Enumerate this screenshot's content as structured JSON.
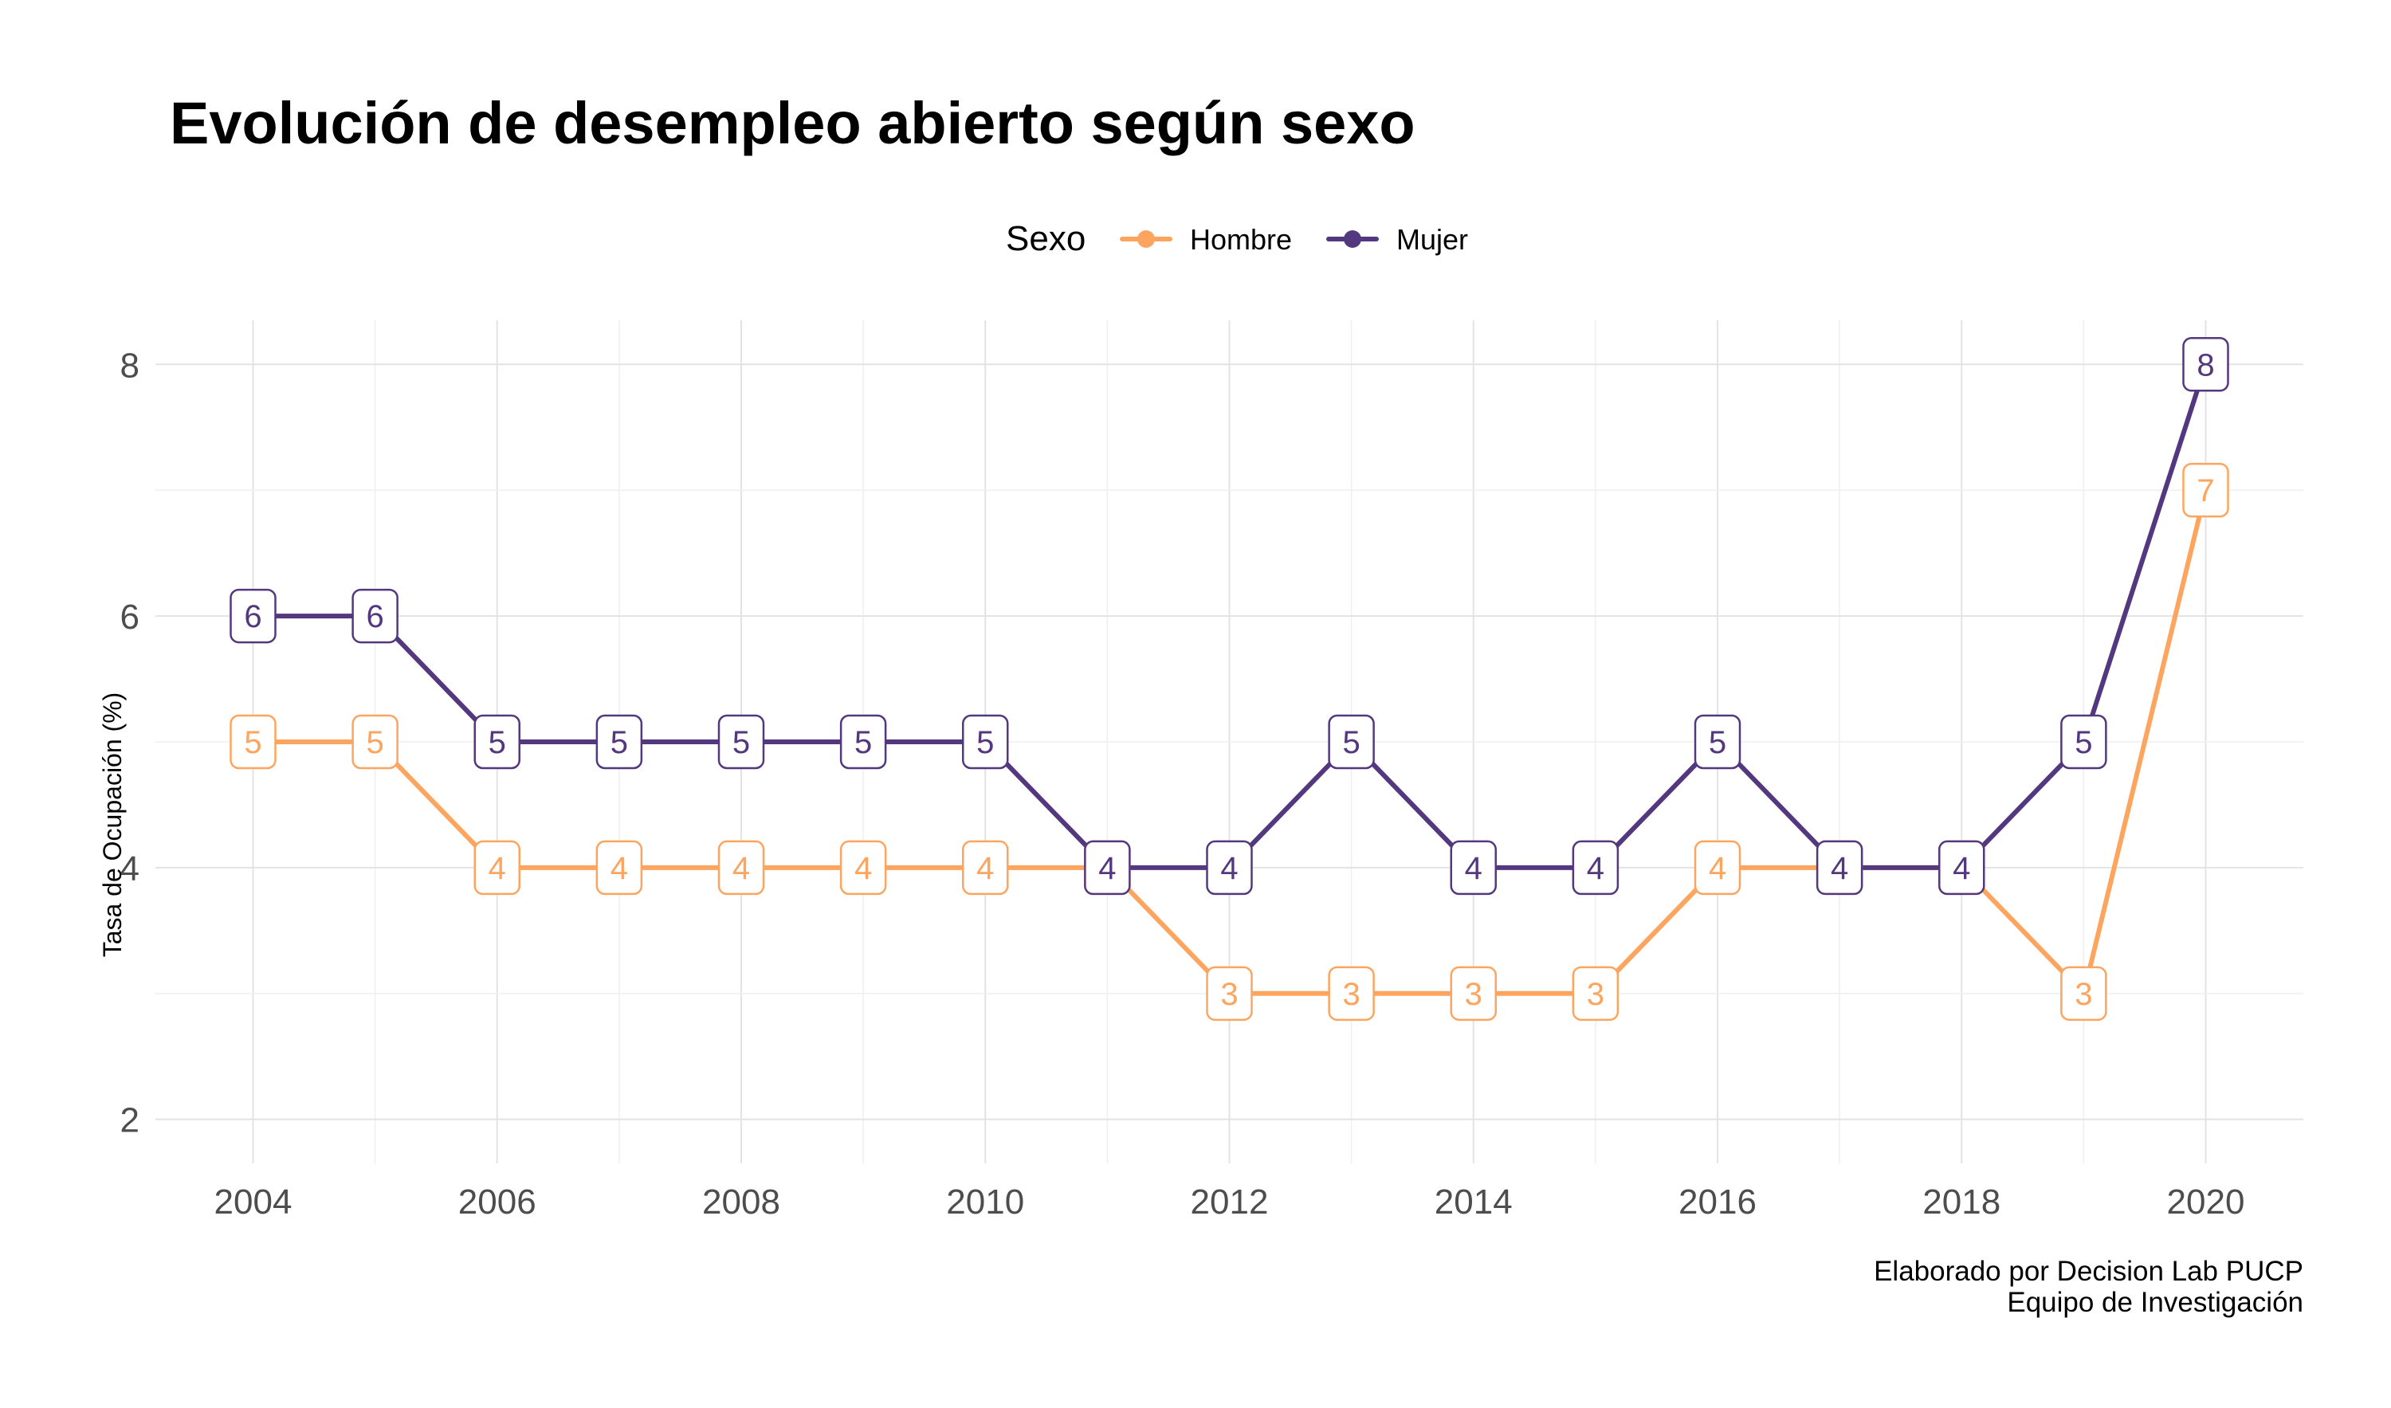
{
  "chart_data": {
    "type": "line",
    "title": "Evolución de desempleo abierto según sexo",
    "ylabel": "Tasa de Ocupación (%)",
    "xlabel": "",
    "x": [
      2004,
      2005,
      2006,
      2007,
      2008,
      2009,
      2010,
      2011,
      2012,
      2013,
      2014,
      2015,
      2016,
      2017,
      2018,
      2019,
      2020
    ],
    "x_ticks": [
      "2004",
      "2006",
      "2008",
      "2010",
      "2012",
      "2014",
      "2016",
      "2018",
      "2020"
    ],
    "y_ticks": [
      "2",
      "4",
      "6",
      "8"
    ],
    "xlim": [
      2003.2,
      2020.8
    ],
    "ylim": [
      1.65,
      8.35
    ],
    "grid": true,
    "legend": {
      "title": "Sexo",
      "placement": "top"
    },
    "series": [
      {
        "name": "Hombre",
        "color": "#FDA55F",
        "values": [
          5,
          5,
          4,
          4,
          4,
          4,
          4,
          4,
          3,
          3,
          3,
          3,
          4,
          4,
          4,
          3,
          7
        ]
      },
      {
        "name": "Mujer",
        "color": "#54387F",
        "values": [
          6,
          6,
          5,
          5,
          5,
          5,
          5,
          4,
          4,
          5,
          4,
          4,
          5,
          4,
          4,
          5,
          8
        ]
      }
    ],
    "caption": [
      "Elaborado por Decision Lab PUCP ",
      "Equipo de Investigación"
    ]
  }
}
